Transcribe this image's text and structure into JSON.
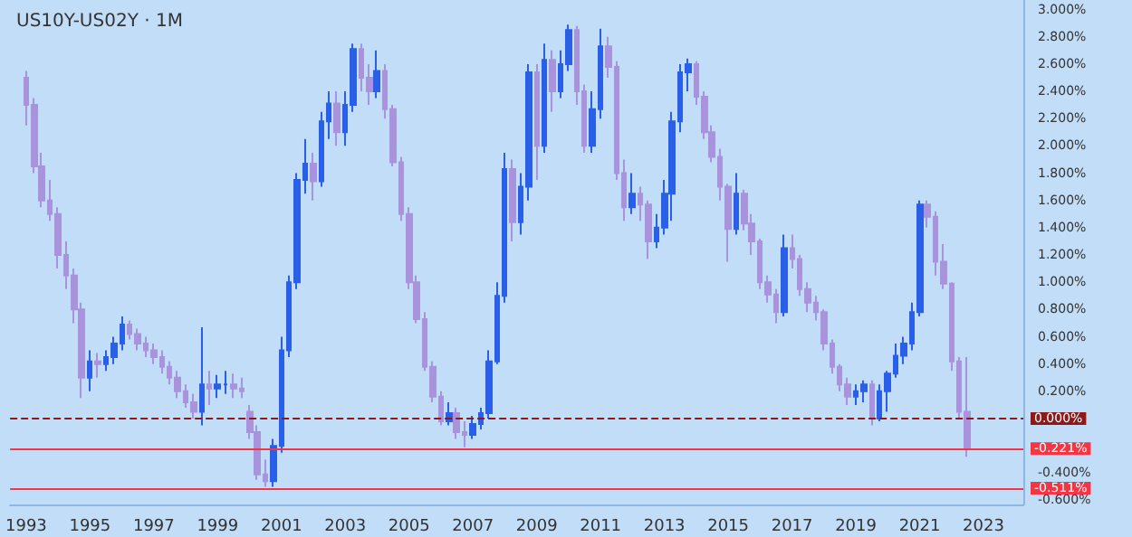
{
  "chart_data": {
    "type": "candlestick",
    "title": "US10Y-US02Y · 1M",
    "x": [
      "1993-01",
      "1993-04",
      "1993-07",
      "1993-10",
      "1994-01",
      "1994-04",
      "1994-07",
      "1994-10",
      "1995-01",
      "1995-04",
      "1995-07",
      "1995-10",
      "1996-01",
      "1996-04",
      "1996-07",
      "1996-10",
      "1997-01",
      "1997-04",
      "1997-07",
      "1997-10",
      "1998-01",
      "1998-04",
      "1998-07",
      "1998-10",
      "1999-01",
      "1999-04",
      "1999-07",
      "1999-10",
      "2000-01",
      "2000-04",
      "2000-07",
      "2000-10",
      "2001-01",
      "2001-04",
      "2001-07",
      "2001-10",
      "2002-01",
      "2002-04",
      "2002-07",
      "2002-10",
      "2003-01",
      "2003-04",
      "2003-07",
      "2003-10",
      "2004-01",
      "2004-04",
      "2004-07",
      "2004-10",
      "2005-01",
      "2005-04",
      "2005-07",
      "2005-10",
      "2006-01",
      "2006-04",
      "2006-07",
      "2006-10",
      "2007-01",
      "2007-04",
      "2007-07",
      "2007-10",
      "2008-01",
      "2008-04",
      "2008-07",
      "2008-10",
      "2009-01",
      "2009-04",
      "2009-07",
      "2009-10",
      "2010-01",
      "2010-04",
      "2010-07",
      "2010-10",
      "2011-01",
      "2011-04",
      "2011-07",
      "2011-10",
      "2012-01",
      "2012-04",
      "2012-07",
      "2012-10",
      "2013-01",
      "2013-04",
      "2013-07",
      "2013-10",
      "2014-01",
      "2014-04",
      "2014-07",
      "2014-10",
      "2015-01",
      "2015-04",
      "2015-07",
      "2015-10",
      "2016-01",
      "2016-04",
      "2016-07",
      "2016-10",
      "2017-01",
      "2017-04",
      "2017-07",
      "2017-10",
      "2018-01",
      "2018-04",
      "2018-07",
      "2018-10",
      "2019-01",
      "2019-04",
      "2019-07",
      "2019-10",
      "2020-01",
      "2020-04",
      "2020-07",
      "2020-10",
      "2021-01",
      "2021-04",
      "2021-07",
      "2021-10",
      "2022-01",
      "2022-04",
      "2022-07"
    ],
    "ohlc": [
      [
        2.5,
        2.55,
        2.15,
        2.3
      ],
      [
        2.3,
        2.35,
        1.8,
        1.85
      ],
      [
        1.85,
        1.95,
        1.55,
        1.6
      ],
      [
        1.6,
        1.75,
        1.45,
        1.5
      ],
      [
        1.5,
        1.55,
        1.1,
        1.2
      ],
      [
        1.2,
        1.3,
        0.95,
        1.05
      ],
      [
        1.05,
        1.1,
        0.7,
        0.8
      ],
      [
        0.8,
        0.85,
        0.15,
        0.3
      ],
      [
        0.3,
        0.5,
        0.2,
        0.42
      ],
      [
        0.42,
        0.48,
        0.3,
        0.4
      ],
      [
        0.4,
        0.5,
        0.35,
        0.45
      ],
      [
        0.45,
        0.6,
        0.4,
        0.55
      ],
      [
        0.55,
        0.75,
        0.5,
        0.69
      ],
      [
        0.69,
        0.72,
        0.58,
        0.62
      ],
      [
        0.62,
        0.66,
        0.5,
        0.55
      ],
      [
        0.55,
        0.6,
        0.45,
        0.5
      ],
      [
        0.5,
        0.55,
        0.4,
        0.45
      ],
      [
        0.45,
        0.5,
        0.33,
        0.38
      ],
      [
        0.38,
        0.42,
        0.25,
        0.3
      ],
      [
        0.3,
        0.35,
        0.15,
        0.2
      ],
      [
        0.2,
        0.25,
        0.08,
        0.12
      ],
      [
        0.12,
        0.18,
        0.0,
        0.05
      ],
      [
        0.05,
        0.67,
        -0.05,
        0.25
      ],
      [
        0.25,
        0.35,
        0.1,
        0.22
      ],
      [
        0.22,
        0.32,
        0.15,
        0.25
      ],
      [
        0.25,
        0.35,
        0.18,
        0.25
      ],
      [
        0.25,
        0.33,
        0.15,
        0.22
      ],
      [
        0.22,
        0.3,
        0.15,
        0.2
      ],
      [
        0.05,
        0.1,
        -0.15,
        -0.1
      ],
      [
        -0.1,
        -0.05,
        -0.45,
        -0.41
      ],
      [
        -0.41,
        -0.3,
        -0.5,
        -0.46
      ],
      [
        -0.46,
        -0.15,
        -0.5,
        -0.2
      ],
      [
        -0.2,
        0.6,
        -0.25,
        0.5
      ],
      [
        0.5,
        1.05,
        0.45,
        1.0
      ],
      [
        1.0,
        1.8,
        0.95,
        1.75
      ],
      [
        1.75,
        2.05,
        1.65,
        1.87
      ],
      [
        1.87,
        1.95,
        1.6,
        1.74
      ],
      [
        1.74,
        2.25,
        1.7,
        2.18
      ],
      [
        2.18,
        2.4,
        2.05,
        2.31
      ],
      [
        2.31,
        2.4,
        2.0,
        2.1
      ],
      [
        2.1,
        2.4,
        2.0,
        2.3
      ],
      [
        2.3,
        2.75,
        2.25,
        2.71
      ],
      [
        2.71,
        2.75,
        2.4,
        2.5
      ],
      [
        2.5,
        2.6,
        2.3,
        2.4
      ],
      [
        2.4,
        2.7,
        2.35,
        2.55
      ],
      [
        2.55,
        2.6,
        2.2,
        2.27
      ],
      [
        2.27,
        2.3,
        1.85,
        1.88
      ],
      [
        1.88,
        1.92,
        1.45,
        1.5
      ],
      [
        1.5,
        1.55,
        0.95,
        1.0
      ],
      [
        1.0,
        1.05,
        0.7,
        0.73
      ],
      [
        0.73,
        0.78,
        0.35,
        0.38
      ],
      [
        0.38,
        0.42,
        0.12,
        0.16
      ],
      [
        0.16,
        0.2,
        -0.05,
        -0.02
      ],
      [
        -0.02,
        0.12,
        -0.05,
        0.04
      ],
      [
        0.04,
        0.08,
        -0.15,
        -0.1
      ],
      [
        -0.1,
        -0.02,
        -0.21,
        -0.12
      ],
      [
        -0.12,
        0.02,
        -0.15,
        -0.04
      ],
      [
        -0.04,
        0.08,
        -0.08,
        0.04
      ],
      [
        0.04,
        0.5,
        0.0,
        0.42
      ],
      [
        0.42,
        1.0,
        0.4,
        0.9
      ],
      [
        0.9,
        1.95,
        0.85,
        1.83
      ],
      [
        1.83,
        1.9,
        1.3,
        1.44
      ],
      [
        1.44,
        1.8,
        1.35,
        1.7
      ],
      [
        1.7,
        2.6,
        1.6,
        2.54
      ],
      [
        2.54,
        2.6,
        1.75,
        2.0
      ],
      [
        2.0,
        2.75,
        1.95,
        2.63
      ],
      [
        2.63,
        2.7,
        2.25,
        2.4
      ],
      [
        2.4,
        2.7,
        2.35,
        2.6
      ],
      [
        2.6,
        2.89,
        2.55,
        2.85
      ],
      [
        2.85,
        2.88,
        2.3,
        2.4
      ],
      [
        2.4,
        2.45,
        1.95,
        2.0
      ],
      [
        2.0,
        2.4,
        1.95,
        2.27
      ],
      [
        2.27,
        2.86,
        2.2,
        2.73
      ],
      [
        2.73,
        2.8,
        2.5,
        2.58
      ],
      [
        2.58,
        2.62,
        1.75,
        1.8
      ],
      [
        1.8,
        1.9,
        1.45,
        1.55
      ],
      [
        1.55,
        1.8,
        1.5,
        1.65
      ],
      [
        1.65,
        1.7,
        1.45,
        1.57
      ],
      [
        1.57,
        1.6,
        1.17,
        1.3
      ],
      [
        1.3,
        1.5,
        1.25,
        1.4
      ],
      [
        1.4,
        1.75,
        1.35,
        1.65
      ],
      [
        1.65,
        2.25,
        1.45,
        2.18
      ],
      [
        2.18,
        2.6,
        2.1,
        2.54
      ],
      [
        2.54,
        2.64,
        2.4,
        2.6
      ],
      [
        2.6,
        2.62,
        2.3,
        2.36
      ],
      [
        2.36,
        2.4,
        2.05,
        2.1
      ],
      [
        2.1,
        2.15,
        1.88,
        1.92
      ],
      [
        1.92,
        1.98,
        1.6,
        1.7
      ],
      [
        1.7,
        1.72,
        1.15,
        1.39
      ],
      [
        1.39,
        1.8,
        1.35,
        1.65
      ],
      [
        1.65,
        1.68,
        1.38,
        1.43
      ],
      [
        1.43,
        1.5,
        1.2,
        1.3
      ],
      [
        1.3,
        1.32,
        0.95,
        1.0
      ],
      [
        1.0,
        1.05,
        0.85,
        0.91
      ],
      [
        0.91,
        0.95,
        0.7,
        0.78
      ],
      [
        0.78,
        1.35,
        0.75,
        1.25
      ],
      [
        1.25,
        1.35,
        1.1,
        1.17
      ],
      [
        1.17,
        1.2,
        0.9,
        0.95
      ],
      [
        0.95,
        1.0,
        0.78,
        0.85
      ],
      [
        0.85,
        0.9,
        0.72,
        0.78
      ],
      [
        0.78,
        0.8,
        0.5,
        0.55
      ],
      [
        0.55,
        0.58,
        0.33,
        0.38
      ],
      [
        0.38,
        0.4,
        0.2,
        0.25
      ],
      [
        0.25,
        0.3,
        0.1,
        0.16
      ],
      [
        0.16,
        0.25,
        0.1,
        0.2
      ],
      [
        0.2,
        0.28,
        0.12,
        0.25
      ],
      [
        0.25,
        0.28,
        -0.05,
        0.0
      ],
      [
        0.0,
        0.25,
        -0.02,
        0.2
      ],
      [
        0.2,
        0.35,
        0.05,
        0.33
      ],
      [
        0.33,
        0.55,
        0.3,
        0.46
      ],
      [
        0.46,
        0.6,
        0.4,
        0.55
      ],
      [
        0.55,
        0.85,
        0.5,
        0.78
      ],
      [
        0.78,
        1.6,
        0.75,
        1.57
      ],
      [
        1.57,
        1.6,
        1.4,
        1.48
      ],
      [
        1.48,
        1.52,
        1.05,
        1.15
      ],
      [
        1.15,
        1.28,
        0.95,
        0.99
      ],
      [
        0.99,
        1.0,
        0.35,
        0.42
      ],
      [
        0.42,
        0.45,
        0.0,
        0.05
      ],
      [
        0.05,
        0.45,
        -0.28,
        -0.22
      ]
    ],
    "xlim": [
      "1992-07",
      "2024-04"
    ],
    "xticks": [
      "1993",
      "1995",
      "1997",
      "1999",
      "2001",
      "2003",
      "2005",
      "2007",
      "2009",
      "2011",
      "2013",
      "2015",
      "2017",
      "2019",
      "2021",
      "2023"
    ],
    "ylim": [
      -0.63,
      3.07
    ],
    "yticks": [
      {
        "value": 3,
        "label": "3.000%"
      },
      {
        "value": 2.8,
        "label": "2.800%"
      },
      {
        "value": 2.6,
        "label": "2.600%"
      },
      {
        "value": 2.4,
        "label": "2.400%"
      },
      {
        "value": 2.2,
        "label": "2.200%"
      },
      {
        "value": 2,
        "label": "2.000%"
      },
      {
        "value": 1.8,
        "label": "1.800%"
      },
      {
        "value": 1.6,
        "label": "1.600%"
      },
      {
        "value": 1.4,
        "label": "1.400%"
      },
      {
        "value": 1.2,
        "label": "1.200%"
      },
      {
        "value": 1,
        "label": "1.000%"
      },
      {
        "value": 0.8,
        "label": "0.800%"
      },
      {
        "value": 0.6,
        "label": "0.600%"
      },
      {
        "value": 0.4,
        "label": "0.400%"
      },
      {
        "value": 0.2,
        "label": "0.200%"
      },
      {
        "value": -0.4,
        "label": "-0.400%"
      },
      {
        "value": -0.6,
        "label": "-0.600%"
      }
    ],
    "ref_lines": [
      {
        "axis": "y",
        "value": 0,
        "label": "0.000%",
        "color": "#8b1a1a",
        "line_style": "dashed"
      },
      {
        "axis": "y",
        "value": -0.221,
        "label": "-0.221%",
        "color": "#f23645",
        "line_style": "solid"
      },
      {
        "axis": "y",
        "value": -0.511,
        "label": "-0.511%",
        "color": "#f23645",
        "line_style": "solid"
      }
    ],
    "grid": false
  }
}
